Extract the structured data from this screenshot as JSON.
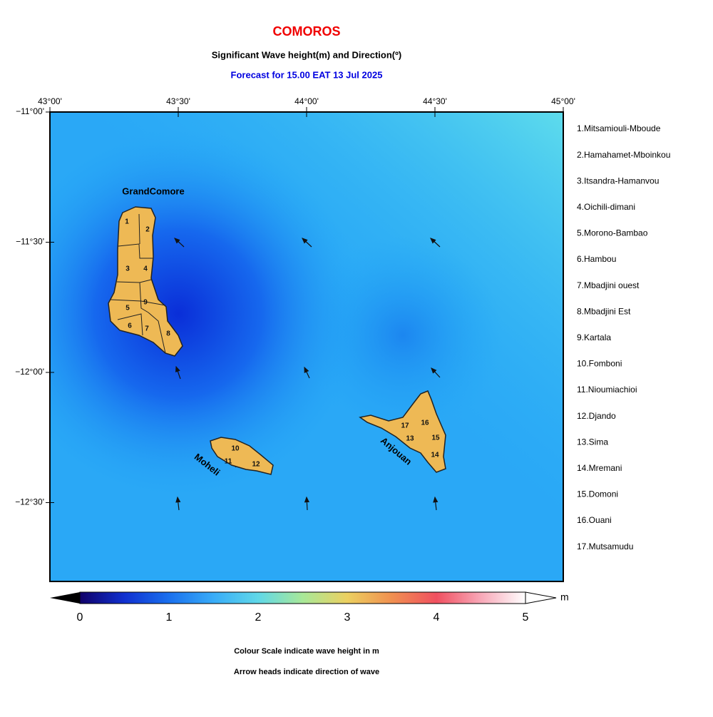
{
  "header": {
    "title": "COMOROS",
    "subtitle": "Significant Wave height(m) and Direction(º)",
    "forecast": "Forecast for  15.00 EAT 13 Jul 2025"
  },
  "map": {
    "lon_ticks": [
      "43°00'",
      "43°30'",
      "44°00'",
      "44°30'",
      "45°00'"
    ],
    "lat_ticks": [
      "−11°00'",
      "−11°30'",
      "−12°00'",
      "−12°30'"
    ],
    "islands": [
      "GrandComore",
      "Moheli",
      "Anjouan"
    ],
    "region_numbers": [
      "1",
      "2",
      "3",
      "4",
      "5",
      "6",
      "7",
      "8",
      "9",
      "10",
      "11",
      "12",
      "13",
      "14",
      "15",
      "16",
      "17"
    ]
  },
  "legend": [
    "1.Mitsamiouli-Mboude",
    "2.Hamahamet-Mboinkou",
    "3.Itsandra-Hamanvou",
    "4.Oichili-dimani",
    "5.Morono-Bambao",
    "6.Hambou",
    "7.Mbadjini ouest",
    "8.Mbadjini Est",
    "9.Kartala",
    "10.Fomboni",
    "11.Nioumiachioi",
    "12.Djando",
    "13.Sima",
    "14.Mremani",
    "15.Domoni",
    "16.Ouani",
    "17.Mutsamudu"
  ],
  "colorbar": {
    "ticks": [
      0,
      1,
      2,
      3,
      4,
      5
    ],
    "unit": "m"
  },
  "notes": [
    "Colour Scale indicate wave height in m",
    "Arrow heads indicate direction of wave"
  ]
}
